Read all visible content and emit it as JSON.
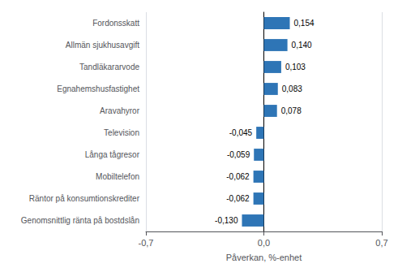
{
  "chart_data": {
    "type": "bar",
    "orientation": "horizontal",
    "categories": [
      "Genomsnittlig ränta på bostdslån",
      "Räntor på konsumtionskrediter",
      "Mobiltelefon",
      "Långa tågresor",
      "Television",
      "Aravahyror",
      "Egnahemshusfastighet",
      "Tandläkararvode",
      "Allmän sjukhusavgift",
      "Fordonsskatt"
    ],
    "values": [
      -0.13,
      -0.062,
      -0.062,
      -0.059,
      -0.045,
      0.078,
      0.083,
      0.103,
      0.14,
      0.154
    ],
    "value_labels": [
      "-0,130",
      "-0,062",
      "-0,062",
      "-0,059",
      "-0,045",
      "0,078",
      "0,083",
      "0,103",
      "0,140",
      "0,154"
    ],
    "data_labels": true,
    "color": "#2E75B6",
    "xlabel": "Påverkan, %-enhet",
    "xlim": [
      -0.7,
      0.7
    ],
    "xticks": [
      {
        "value": -0.7,
        "label": "-0,7"
      },
      {
        "value": 0.0,
        "label": "0,0"
      },
      {
        "value": 0.7,
        "label": "0,7"
      }
    ],
    "grid": true
  }
}
